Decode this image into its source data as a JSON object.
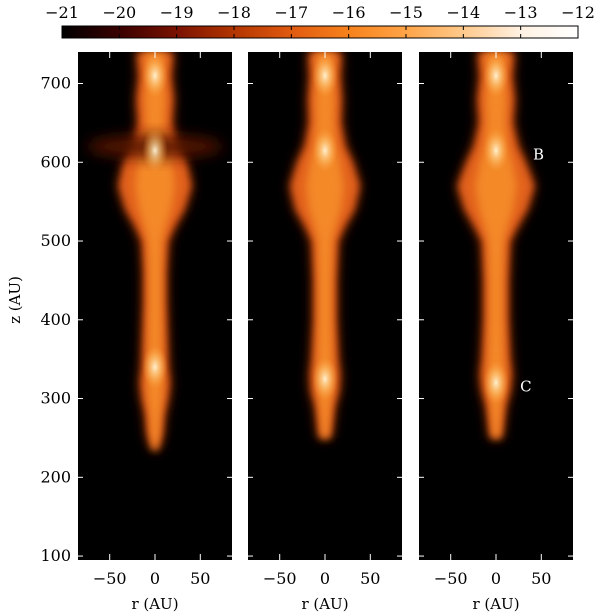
{
  "chart_data": {
    "type": "heatmap",
    "colorbar": {
      "ticks": [
        "−21",
        "−20",
        "−19",
        "−18",
        "−17",
        "−16",
        "−15",
        "−14",
        "−13",
        "−12"
      ],
      "range": [
        -21,
        -12
      ],
      "colors": [
        "#000000",
        "#3a0000",
        "#7a1200",
        "#b33500",
        "#e05a10",
        "#f7821c",
        "#ffa448",
        "#ffc98c",
        "#fff1e2",
        "#ffffff"
      ]
    },
    "ylabel": "z (AU)",
    "ylim": [
      95,
      740
    ],
    "yticks": [
      {
        "value": 100,
        "label": "100"
      },
      {
        "value": 200,
        "label": "200"
      },
      {
        "value": 300,
        "label": "300"
      },
      {
        "value": 400,
        "label": "400"
      },
      {
        "value": 500,
        "label": "500"
      },
      {
        "value": 600,
        "label": "600"
      },
      {
        "value": 700,
        "label": "700"
      }
    ],
    "panels": [
      {
        "xlabel": "r (AU)",
        "xlim": [
          -85,
          85
        ],
        "xticks": [
          {
            "value": -50,
            "label": "−50"
          },
          {
            "value": 0,
            "label": "0"
          },
          {
            "value": 50,
            "label": "50"
          }
        ],
        "annotations": [],
        "jet": {
          "base_z": 235,
          "top_z": 740,
          "profile": [
            [
              235,
              3
            ],
            [
              255,
              8
            ],
            [
              280,
              10
            ],
            [
              300,
              14
            ],
            [
              320,
              16
            ],
            [
              340,
              14
            ],
            [
              380,
              13
            ],
            [
              420,
              12
            ],
            [
              460,
              12
            ],
            [
              500,
              14
            ],
            [
              520,
              22
            ],
            [
              540,
              32
            ],
            [
              570,
              40
            ],
            [
              600,
              34
            ],
            [
              620,
              24
            ],
            [
              650,
              18
            ],
            [
              680,
              20
            ],
            [
              710,
              17
            ],
            [
              740,
              20
            ]
          ],
          "wings": {
            "z": 620,
            "extent": 75
          },
          "hot_spots": [
            340,
            615,
            710
          ]
        }
      },
      {
        "xlabel": "r (AU)",
        "xlim": [
          -85,
          85
        ],
        "xticks": [
          {
            "value": -50,
            "label": "−50"
          },
          {
            "value": 0,
            "label": "0"
          },
          {
            "value": 50,
            "label": "50"
          }
        ],
        "annotations": [],
        "jet": {
          "base_z": 250,
          "top_z": 740,
          "profile": [
            [
              250,
              6
            ],
            [
              270,
              8
            ],
            [
              290,
              10
            ],
            [
              310,
              15
            ],
            [
              330,
              16
            ],
            [
              350,
              14
            ],
            [
              400,
              12
            ],
            [
              450,
              12
            ],
            [
              500,
              14
            ],
            [
              520,
              22
            ],
            [
              540,
              32
            ],
            [
              570,
              38
            ],
            [
              600,
              30
            ],
            [
              620,
              22
            ],
            [
              650,
              17
            ],
            [
              680,
              18
            ],
            [
              710,
              16
            ],
            [
              740,
              18
            ]
          ],
          "wings": null,
          "hot_spots": [
            325,
            615,
            710
          ]
        }
      },
      {
        "xlabel": "r (AU)",
        "xlim": [
          -85,
          85
        ],
        "xticks": [
          {
            "value": -50,
            "label": "−50"
          },
          {
            "value": 0,
            "label": "0"
          },
          {
            "value": 50,
            "label": "50"
          }
        ],
        "annotations": [
          {
            "text": "B",
            "r": 47,
            "z": 610
          },
          {
            "text": "C",
            "r": 33,
            "z": 315
          }
        ],
        "jet": {
          "base_z": 250,
          "top_z": 740,
          "profile": [
            [
              250,
              6
            ],
            [
              270,
              8
            ],
            [
              290,
              10
            ],
            [
              310,
              15
            ],
            [
              330,
              17
            ],
            [
              350,
              15
            ],
            [
              400,
              13
            ],
            [
              450,
              13
            ],
            [
              500,
              15
            ],
            [
              520,
              24
            ],
            [
              540,
              34
            ],
            [
              570,
              42
            ],
            [
              600,
              32
            ],
            [
              620,
              24
            ],
            [
              650,
              18
            ],
            [
              680,
              20
            ],
            [
              710,
              17
            ],
            [
              740,
              20
            ]
          ],
          "wings": null,
          "hot_spots": [
            320,
            615,
            710
          ]
        }
      }
    ]
  }
}
